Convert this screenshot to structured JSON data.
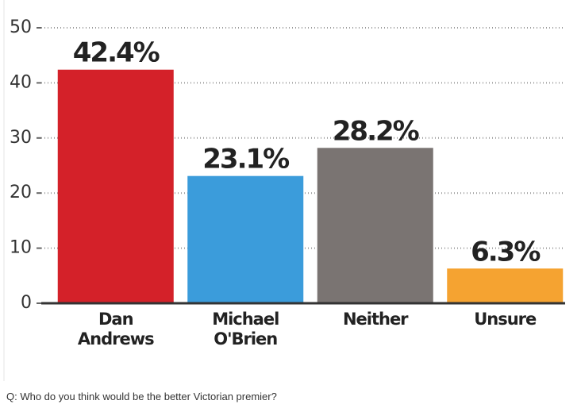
{
  "chart_data": {
    "type": "bar",
    "categories": [
      "Dan Andrews",
      "Michael O'Brien",
      "Neither",
      "Unsure"
    ],
    "values": [
      42.4,
      23.1,
      28.2,
      6.3
    ],
    "value_labels": [
      "42.4%",
      "23.1%",
      "28.2%",
      "6.3%"
    ],
    "colors": [
      "#d42129",
      "#3b9cdb",
      "#7a7472",
      "#f5a331"
    ],
    "ylim": [
      0,
      50
    ],
    "yticks": [
      0,
      10,
      20,
      30,
      40,
      50
    ],
    "grid": true
  },
  "caption": "Q: Who do you think would be the better Victorian premier?"
}
